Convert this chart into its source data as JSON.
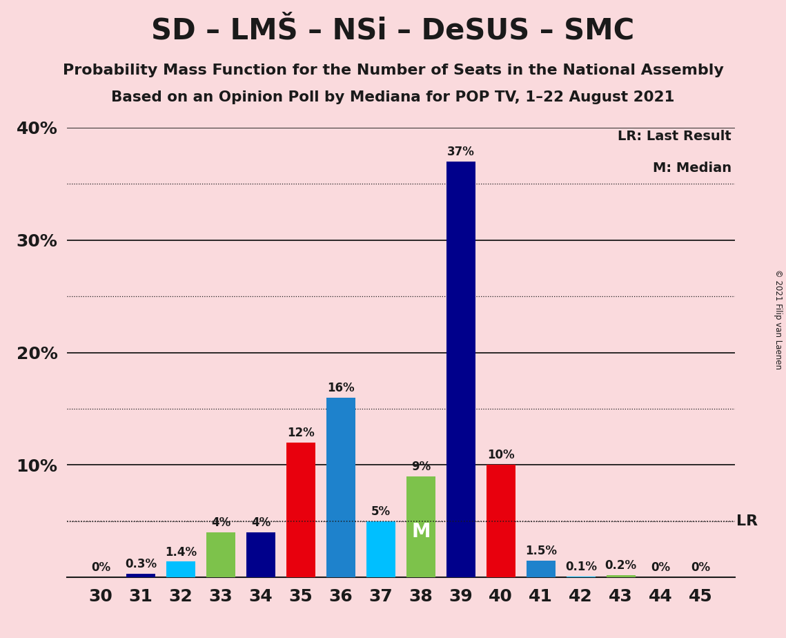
{
  "title": "SD – LMŠ – NSi – DeSUS – SMC",
  "subtitle1": "Probability Mass Function for the Number of Seats in the National Assembly",
  "subtitle2": "Based on an Opinion Poll by Mediana for POP TV, 1–22 August 2021",
  "copyright": "© 2021 Filip van Laenen",
  "seats": [
    30,
    31,
    32,
    33,
    34,
    35,
    36,
    37,
    38,
    39,
    40,
    41,
    42,
    43,
    44,
    45
  ],
  "values": [
    0.0,
    0.3,
    1.4,
    4.0,
    4.0,
    12.0,
    16.0,
    5.0,
    9.0,
    37.0,
    10.0,
    1.5,
    0.1,
    0.2,
    0.0,
    0.0
  ],
  "labels": [
    "0%",
    "0.3%",
    "1.4%",
    "4%",
    "4%",
    "12%",
    "16%",
    "5%",
    "9%",
    "37%",
    "10%",
    "1.5%",
    "0.1%",
    "0.2%",
    "0%",
    "0%"
  ],
  "bar_colors": [
    "#00008B",
    "#00008B",
    "#00BFFF",
    "#7DC24B",
    "#00008B",
    "#E8000D",
    "#1E82CC",
    "#00BFFF",
    "#7DC24B",
    "#00008B",
    "#E8000D",
    "#1E82CC",
    "#00BFFF",
    "#7DC24B",
    "#00008B",
    "#E8000D"
  ],
  "lr_value": 5.0,
  "median_seat": 38,
  "median_label": "M",
  "background_color": "#FADADD",
  "yticks": [
    0,
    10,
    20,
    30,
    40
  ],
  "ytick_labels": [
    "",
    "10%",
    "20%",
    "30%",
    "40%"
  ],
  "legend_lr": "LR: Last Result",
  "legend_m": "M: Median",
  "text_color": "#1a1a1a",
  "title_fontsize": 30,
  "subtitle_fontsize": 16,
  "tick_fontsize": 18,
  "label_fontsize": 12,
  "legend_fontsize": 14
}
